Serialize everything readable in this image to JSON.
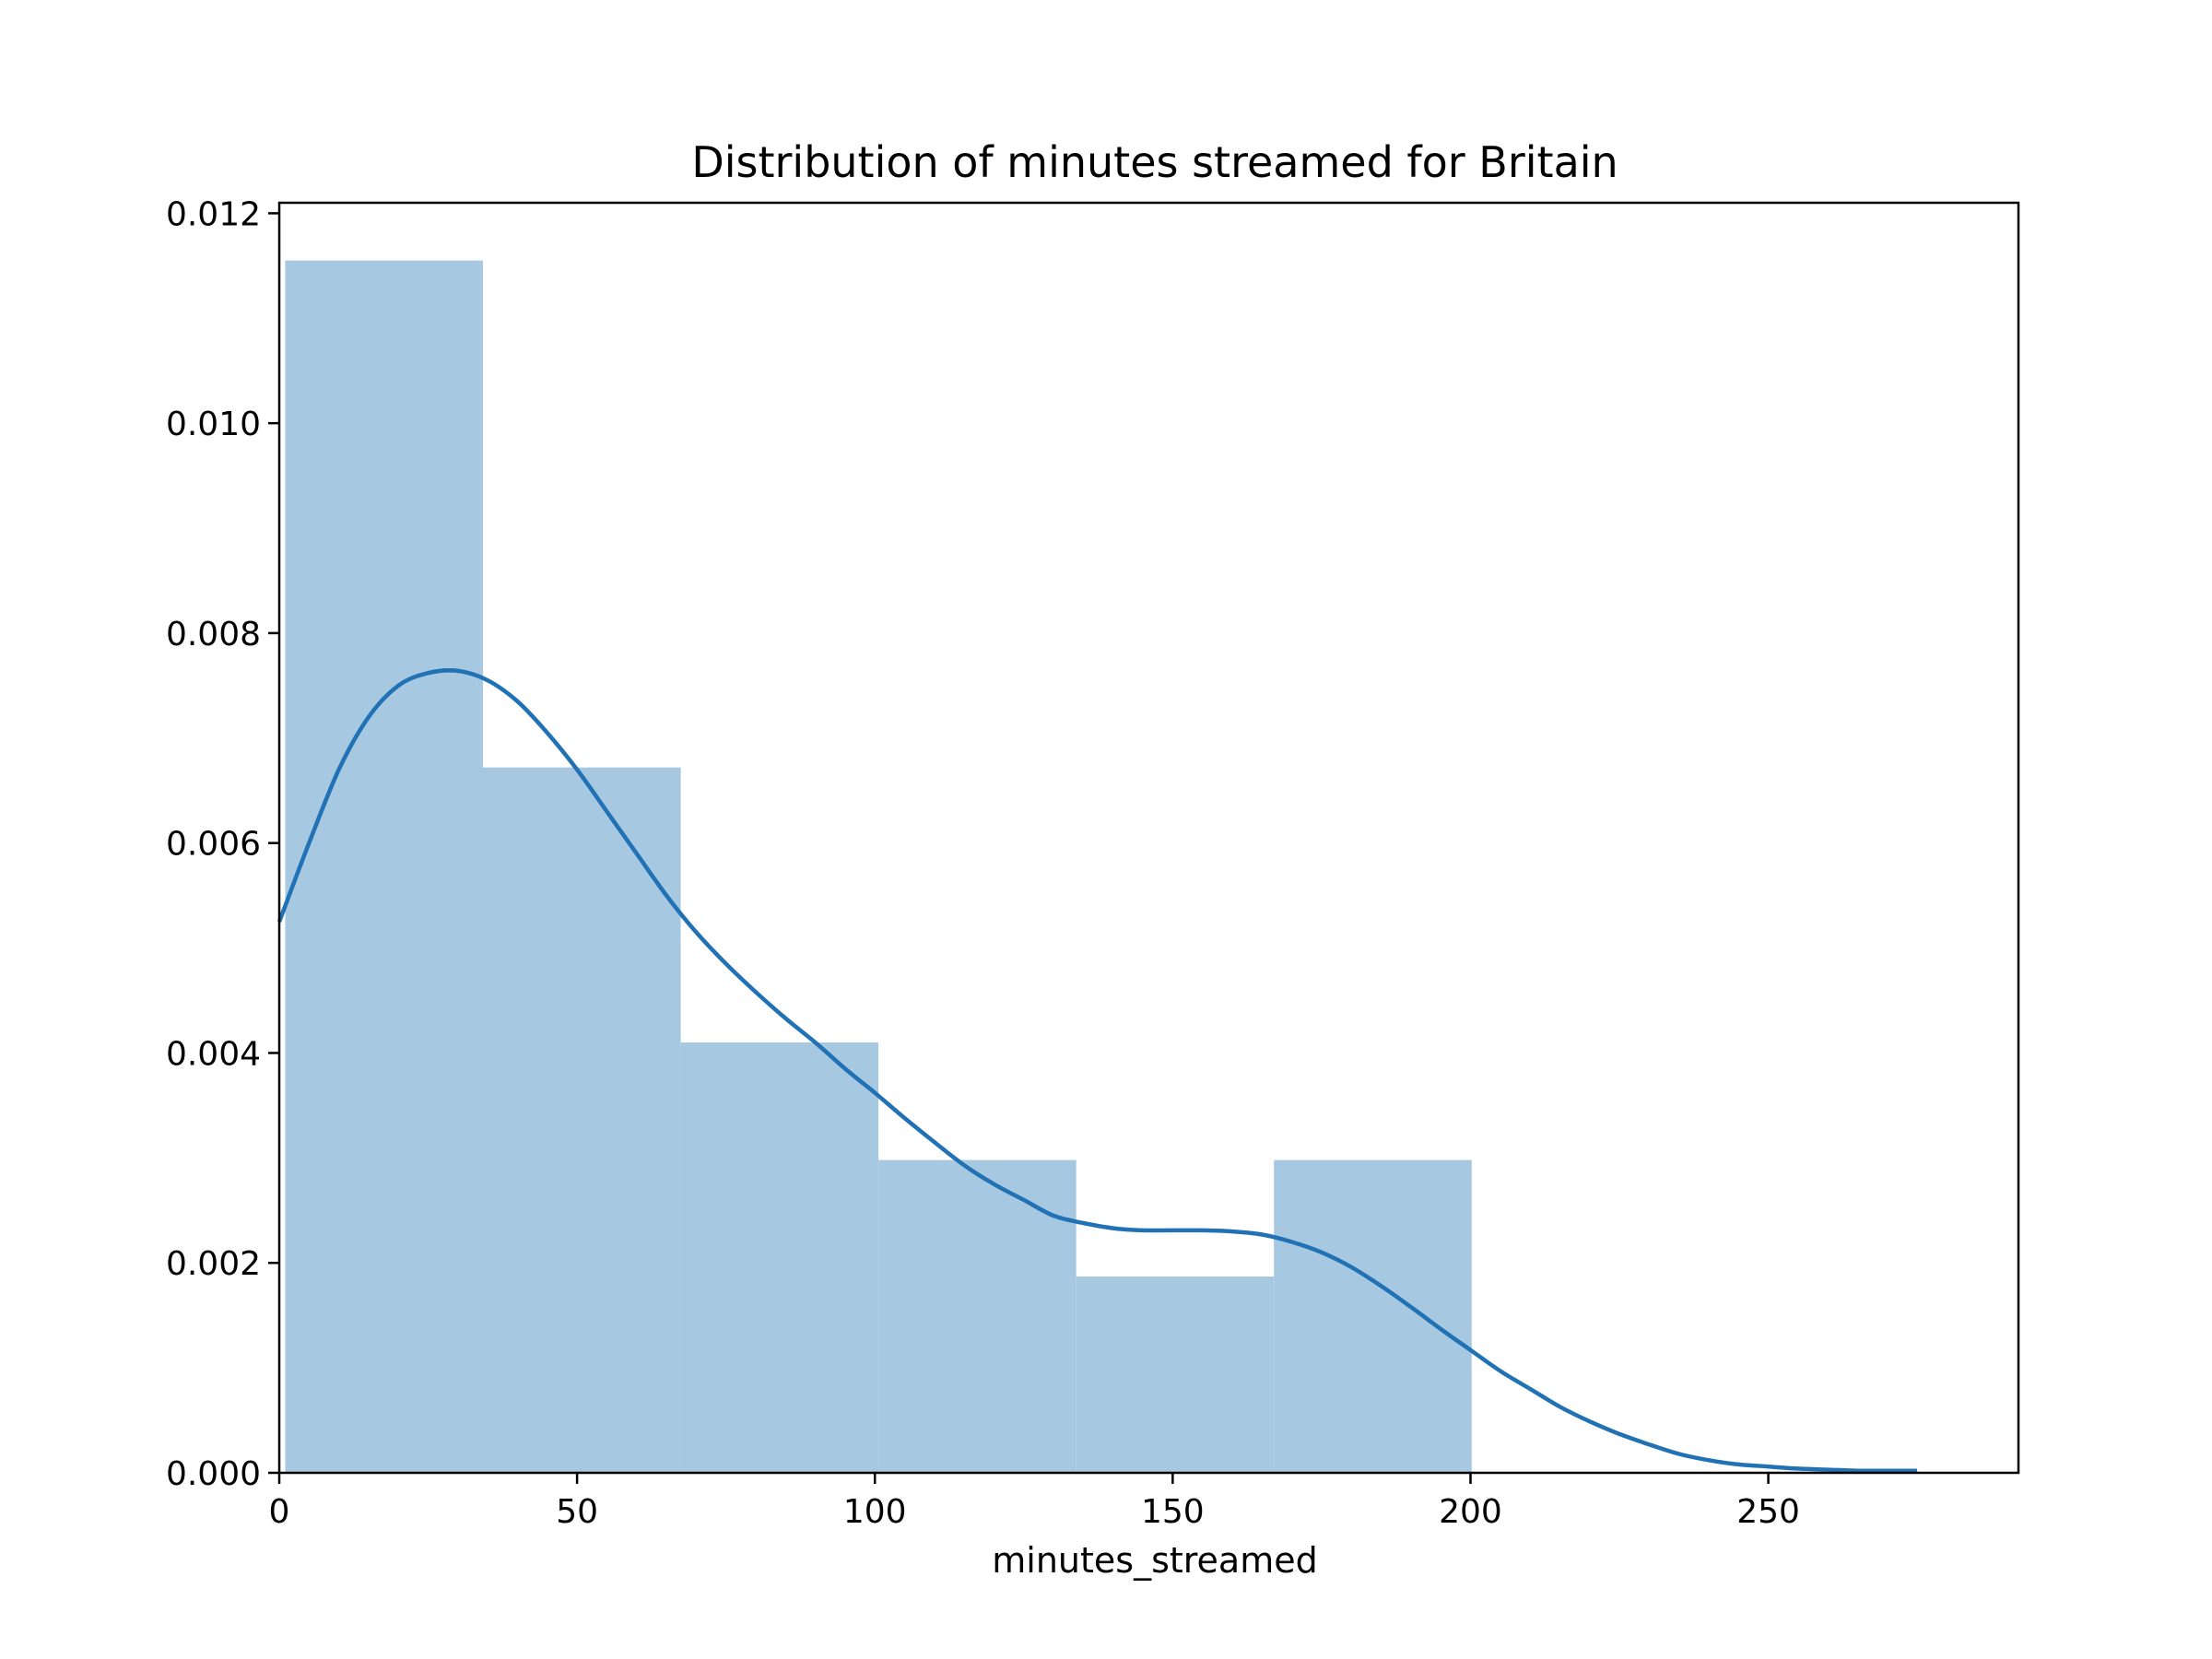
{
  "chart_data": {
    "type": "bar",
    "title": "Distribution of minutes streamed for Britain",
    "xlabel": "minutes_streamed",
    "ylabel": "",
    "xlim": [
      0,
      292
    ],
    "ylim": [
      0,
      0.0121
    ],
    "x_ticks": [
      0,
      50,
      100,
      150,
      200,
      250
    ],
    "y_ticks": [
      0.0,
      0.002,
      0.004,
      0.006,
      0.008,
      0.01,
      0.012
    ],
    "x_tick_labels": [
      "0",
      "50",
      "100",
      "150",
      "200",
      "250"
    ],
    "y_tick_labels": [
      "0.000",
      "0.002",
      "0.004",
      "0.006",
      "0.008",
      "0.010",
      "0.012"
    ],
    "grid": false,
    "colors": {
      "bar": "#a6c8e1",
      "kde": "#2171b5",
      "axis": "#000000"
    },
    "series": [
      {
        "type": "histogram",
        "bins": [
          {
            "x0": 1.0,
            "x1": 34.2,
            "value": 0.01155
          },
          {
            "x0": 34.2,
            "x1": 67.4,
            "value": 0.00672
          },
          {
            "x0": 67.4,
            "x1": 100.6,
            "value": 0.0041
          },
          {
            "x0": 100.6,
            "x1": 133.8,
            "value": 0.00298
          },
          {
            "x0": 133.8,
            "x1": 167.0,
            "value": 0.00187
          },
          {
            "x0": 167.0,
            "x1": 200.2,
            "value": 0.00298
          }
        ]
      },
      {
        "type": "kde",
        "x": [
          0,
          5,
          10,
          15,
          20,
          25,
          30,
          35,
          40,
          45,
          50,
          55,
          60,
          65,
          70,
          75,
          80,
          85,
          90,
          95,
          100,
          105,
          110,
          115,
          120,
          125,
          130,
          135,
          140,
          145,
          150,
          155,
          160,
          165,
          170,
          175,
          180,
          185,
          190,
          195,
          200,
          205,
          210,
          215,
          220,
          225,
          230,
          235,
          240,
          245,
          250,
          255,
          260,
          265,
          270,
          275
        ],
        "y": [
          0.00525,
          0.006,
          0.0067,
          0.0072,
          0.0075,
          0.00762,
          0.00764,
          0.00755,
          0.00735,
          0.00705,
          0.0067,
          0.0063,
          0.0059,
          0.0055,
          0.00515,
          0.00485,
          0.00458,
          0.00433,
          0.0041,
          0.00385,
          0.00362,
          0.00338,
          0.00315,
          0.00293,
          0.00275,
          0.0026,
          0.00245,
          0.00238,
          0.00233,
          0.00231,
          0.00231,
          0.00231,
          0.0023,
          0.00227,
          0.0022,
          0.0021,
          0.00196,
          0.00178,
          0.00158,
          0.00137,
          0.00117,
          0.00097,
          0.0008,
          0.00063,
          0.00049,
          0.00037,
          0.00027,
          0.00018,
          0.00012,
          8e-05,
          6e-05,
          4e-05,
          3e-05,
          2e-05,
          2e-05,
          2e-05
        ]
      }
    ]
  }
}
